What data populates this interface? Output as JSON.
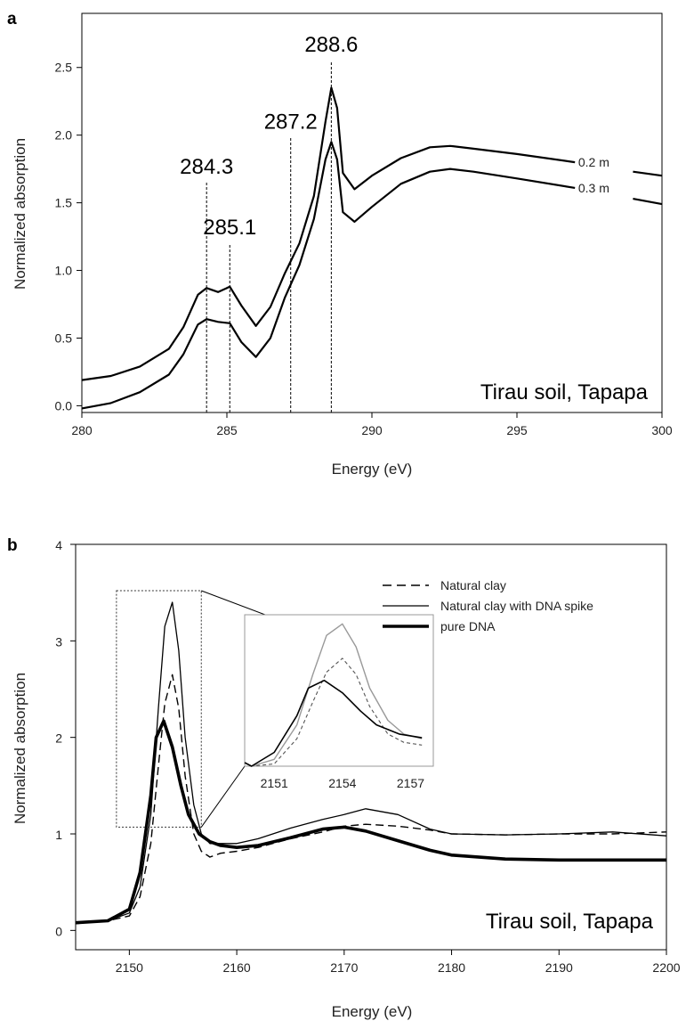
{
  "chart_data": [
    {
      "panel": "a",
      "type": "line",
      "xlabel": "Energy (eV)",
      "ylabel": "Normalized absorption",
      "xlim": [
        280,
        300
      ],
      "ylim": [
        -0.05,
        2.9
      ],
      "xticks": [
        "280",
        "285",
        "290",
        "295",
        "300"
      ],
      "yticks": [
        "0.0",
        "0.5",
        "1.0",
        "1.5",
        "2.0",
        "2.5"
      ],
      "annotation": "Tirau soil, Tapapa",
      "peaks": [
        {
          "label": "284.3",
          "x": 284.3,
          "y_top": 1.65
        },
        {
          "label": "285.1",
          "x": 285.1,
          "y_top": 1.2
        },
        {
          "label": "287.2",
          "x": 287.2,
          "y_top": 1.98
        },
        {
          "label": "288.6",
          "x": 288.6,
          "y_top": 2.55
        }
      ],
      "series": [
        {
          "name": "0.2 m",
          "x": [
            280,
            281,
            282,
            283,
            283.5,
            284.0,
            284.3,
            284.7,
            285.1,
            285.5,
            286.0,
            286.5,
            287.0,
            287.5,
            288.0,
            288.4,
            288.6,
            288.8,
            289.0,
            289.4,
            290.0,
            291.0,
            292.0,
            292.7,
            293.5,
            295,
            297,
            299,
            300
          ],
          "y": [
            0.19,
            0.22,
            0.29,
            0.42,
            0.58,
            0.82,
            0.87,
            0.84,
            0.88,
            0.74,
            0.59,
            0.73,
            0.98,
            1.2,
            1.55,
            2.1,
            2.35,
            2.2,
            1.72,
            1.6,
            1.7,
            1.83,
            1.91,
            1.92,
            1.9,
            1.86,
            1.8,
            1.73,
            1.7
          ]
        },
        {
          "name": "0.3 m",
          "x": [
            280,
            281,
            282,
            283,
            283.5,
            284.0,
            284.3,
            284.7,
            285.1,
            285.5,
            286.0,
            286.5,
            287.0,
            287.5,
            288.0,
            288.4,
            288.6,
            288.8,
            289.0,
            289.4,
            290.0,
            291.0,
            292.0,
            292.7,
            293.5,
            295,
            297,
            299,
            300
          ],
          "y": [
            -0.02,
            0.02,
            0.1,
            0.23,
            0.38,
            0.6,
            0.64,
            0.62,
            0.61,
            0.47,
            0.36,
            0.5,
            0.8,
            1.04,
            1.38,
            1.82,
            1.95,
            1.82,
            1.43,
            1.36,
            1.47,
            1.64,
            1.73,
            1.75,
            1.73,
            1.68,
            1.61,
            1.53,
            1.49
          ]
        }
      ]
    },
    {
      "panel": "b",
      "type": "line",
      "xlabel": "Energy (eV)",
      "ylabel": "Normalized absorption",
      "xlim": [
        2145,
        2200
      ],
      "ylim": [
        -0.2,
        4
      ],
      "xticks": [
        "2150",
        "2160",
        "2170",
        "2180",
        "2190",
        "2200"
      ],
      "yticks": [
        "0",
        "1",
        "2",
        "3",
        "4"
      ],
      "annotation": "Tirau soil, Tapapa",
      "legend_position": "top-right",
      "series": [
        {
          "name": "Natural clay",
          "style": "dashed",
          "x": [
            2145,
            2148,
            2150,
            2151,
            2152,
            2152.7,
            2153.3,
            2154,
            2154.6,
            2155.2,
            2156,
            2156.7,
            2157.5,
            2158.5,
            2160,
            2162,
            2165,
            2168,
            2170,
            2172,
            2175,
            2178,
            2180,
            2185,
            2190,
            2195,
            2200
          ],
          "y": [
            0.07,
            0.1,
            0.15,
            0.35,
            0.9,
            1.7,
            2.35,
            2.65,
            2.3,
            1.6,
            1.0,
            0.82,
            0.76,
            0.8,
            0.82,
            0.86,
            0.95,
            1.02,
            1.08,
            1.1,
            1.08,
            1.04,
            1.0,
            0.99,
            1.0,
            1.0,
            1.02
          ]
        },
        {
          "name": "Natural clay with DNA spike",
          "style": "thin",
          "x": [
            2145,
            2148,
            2150,
            2151,
            2152,
            2152.7,
            2153.3,
            2154,
            2154.6,
            2155.2,
            2156,
            2156.7,
            2157.5,
            2158.5,
            2160,
            2162,
            2165,
            2168,
            2170,
            2172,
            2175,
            2178,
            2180,
            2185,
            2190,
            2195,
            2200
          ],
          "y": [
            0.08,
            0.1,
            0.18,
            0.45,
            1.2,
            2.3,
            3.15,
            3.4,
            2.9,
            2.0,
            1.3,
            1.0,
            0.9,
            0.9,
            0.9,
            0.95,
            1.06,
            1.15,
            1.2,
            1.26,
            1.2,
            1.05,
            1.0,
            0.99,
            1.0,
            1.02,
            0.98
          ]
        },
        {
          "name": "pure DNA",
          "style": "bold",
          "x": [
            2145,
            2148,
            2150,
            2151,
            2152,
            2152.5,
            2153.2,
            2154,
            2154.8,
            2155.5,
            2156.5,
            2157.5,
            2158.5,
            2160,
            2162,
            2165,
            2168,
            2170,
            2172,
            2175,
            2178,
            2180,
            2185,
            2190,
            2195,
            2200
          ],
          "y": [
            0.08,
            0.1,
            0.22,
            0.6,
            1.4,
            2.0,
            2.17,
            1.9,
            1.5,
            1.2,
            1.0,
            0.92,
            0.88,
            0.86,
            0.88,
            0.96,
            1.05,
            1.07,
            1.03,
            0.93,
            0.83,
            0.78,
            0.74,
            0.73,
            0.73,
            0.73
          ]
        }
      ],
      "inset": {
        "xticks": [
          "2151",
          "2154",
          "2157"
        ],
        "xlim": [
          2149.7,
          2158
        ],
        "ylim": [
          0.3,
          3.6
        ]
      }
    }
  ]
}
